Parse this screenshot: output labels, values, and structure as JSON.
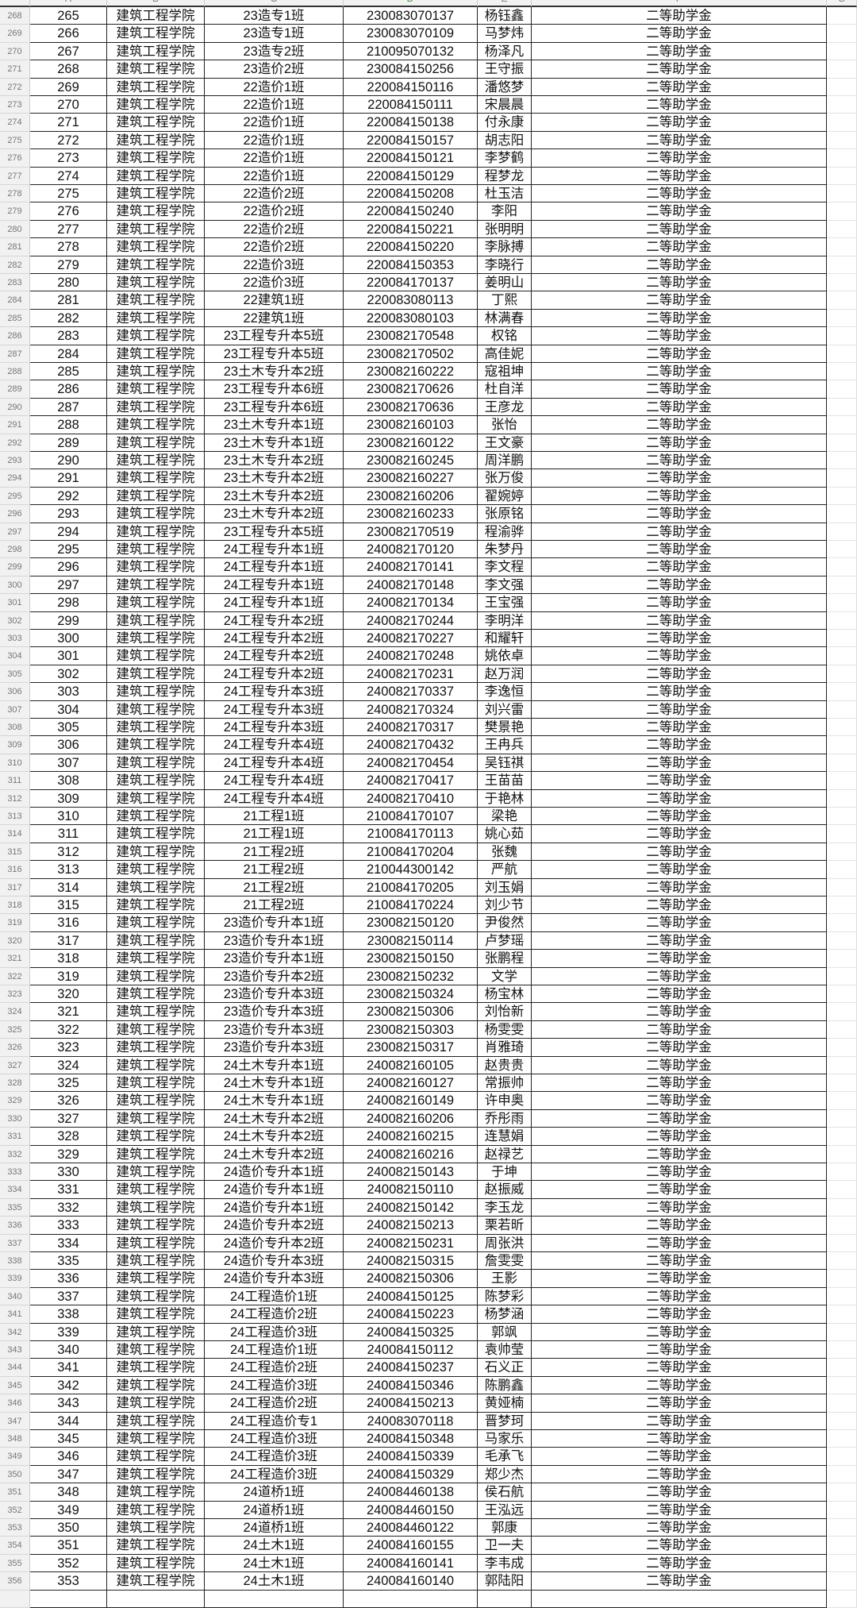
{
  "columns": [
    "A",
    "B",
    "C",
    "D",
    "E",
    "F",
    "G"
  ],
  "rows": [
    [
      "268",
      "265",
      "建筑工程学院",
      "23造专1班",
      "230083070137",
      "杨钰鑫",
      "二等助学金"
    ],
    [
      "269",
      "266",
      "建筑工程学院",
      "23造专1班",
      "230083070109",
      "马梦炜",
      "二等助学金"
    ],
    [
      "270",
      "267",
      "建筑工程学院",
      "23造专2班",
      "210095070132",
      "杨泽凡",
      "二等助学金"
    ],
    [
      "271",
      "268",
      "建筑工程学院",
      "23造价2班",
      "230084150256",
      "王守振",
      "二等助学金"
    ],
    [
      "272",
      "269",
      "建筑工程学院",
      "22造价1班",
      "220084150116",
      "潘悠梦",
      "二等助学金"
    ],
    [
      "273",
      "270",
      "建筑工程学院",
      "22造价1班",
      "220084150111",
      "宋晨晨",
      "二等助学金"
    ],
    [
      "274",
      "271",
      "建筑工程学院",
      "22造价1班",
      "220084150138",
      "付永康",
      "二等助学金"
    ],
    [
      "275",
      "272",
      "建筑工程学院",
      "22造价1班",
      "220084150157",
      "胡志阳",
      "二等助学金"
    ],
    [
      "276",
      "273",
      "建筑工程学院",
      "22造价1班",
      "220084150121",
      "李梦鹤",
      "二等助学金"
    ],
    [
      "277",
      "274",
      "建筑工程学院",
      "22造价1班",
      "220084150129",
      "程梦龙",
      "二等助学金"
    ],
    [
      "278",
      "275",
      "建筑工程学院",
      "22造价2班",
      "220084150208",
      "杜玉洁",
      "二等助学金"
    ],
    [
      "279",
      "276",
      "建筑工程学院",
      "22造价2班",
      "220084150240",
      "李阳",
      "二等助学金"
    ],
    [
      "280",
      "277",
      "建筑工程学院",
      "22造价2班",
      "220084150221",
      "张明明",
      "二等助学金"
    ],
    [
      "281",
      "278",
      "建筑工程学院",
      "22造价2班",
      "220084150220",
      "李脉搏",
      "二等助学金"
    ],
    [
      "282",
      "279",
      "建筑工程学院",
      "22造价3班",
      "220084150353",
      "李晓行",
      "二等助学金"
    ],
    [
      "283",
      "280",
      "建筑工程学院",
      "22造价3班",
      "220084170137",
      "姜明山",
      "二等助学金"
    ],
    [
      "284",
      "281",
      "建筑工程学院",
      "22建筑1班",
      "220083080113",
      "丁熙",
      "二等助学金"
    ],
    [
      "285",
      "282",
      "建筑工程学院",
      "22建筑1班",
      "220083080103",
      "林满春",
      "二等助学金"
    ],
    [
      "286",
      "283",
      "建筑工程学院",
      "23工程专升本5班",
      "230082170548",
      "权铭",
      "二等助学金"
    ],
    [
      "287",
      "284",
      "建筑工程学院",
      "23工程专升本5班",
      "230082170502",
      "高佳妮",
      "二等助学金"
    ],
    [
      "288",
      "285",
      "建筑工程学院",
      "23土木专升本2班",
      "230082160222",
      "寇祖坤",
      "二等助学金"
    ],
    [
      "289",
      "286",
      "建筑工程学院",
      "23工程专升本6班",
      "230082170626",
      "杜自洋",
      "二等助学金"
    ],
    [
      "290",
      "287",
      "建筑工程学院",
      "23工程专升本6班",
      "230082170636",
      "王彦龙",
      "二等助学金"
    ],
    [
      "291",
      "288",
      "建筑工程学院",
      "23土木专升本1班",
      "230082160103",
      "张怡",
      "二等助学金"
    ],
    [
      "292",
      "289",
      "建筑工程学院",
      "23土木专升本1班",
      "230082160122",
      "王文豪",
      "二等助学金"
    ],
    [
      "293",
      "290",
      "建筑工程学院",
      "23土木专升本2班",
      "230082160245",
      "周洋鹏",
      "二等助学金"
    ],
    [
      "294",
      "291",
      "建筑工程学院",
      "23土木专升本2班",
      "230082160227",
      "张万俊",
      "二等助学金"
    ],
    [
      "295",
      "292",
      "建筑工程学院",
      "23土木专升本2班",
      "230082160206",
      "翟婉婷",
      "二等助学金"
    ],
    [
      "296",
      "293",
      "建筑工程学院",
      "23土木专升本2班",
      "230082160233",
      "张原铭",
      "二等助学金"
    ],
    [
      "297",
      "294",
      "建筑工程学院",
      "23工程专升本5班",
      "230082170519",
      "程渝骅",
      "二等助学金"
    ],
    [
      "298",
      "295",
      "建筑工程学院",
      "24工程专升本1班",
      "240082170120",
      "朱梦丹",
      "二等助学金"
    ],
    [
      "299",
      "296",
      "建筑工程学院",
      "24工程专升本1班",
      "240082170141",
      "李文程",
      "二等助学金"
    ],
    [
      "300",
      "297",
      "建筑工程学院",
      "24工程专升本1班",
      "240082170148",
      "李文强",
      "二等助学金"
    ],
    [
      "301",
      "298",
      "建筑工程学院",
      "24工程专升本1班",
      "240082170134",
      "王宝强",
      "二等助学金"
    ],
    [
      "302",
      "299",
      "建筑工程学院",
      "24工程专升本2班",
      "240082170244",
      "李明洋",
      "二等助学金"
    ],
    [
      "303",
      "300",
      "建筑工程学院",
      "24工程专升本2班",
      "240082170227",
      "和耀轩",
      "二等助学金"
    ],
    [
      "304",
      "301",
      "建筑工程学院",
      "24工程专升本2班",
      "240082170248",
      "姚依卓",
      "二等助学金"
    ],
    [
      "305",
      "302",
      "建筑工程学院",
      "24工程专升本2班",
      "240082170231",
      "赵万润",
      "二等助学金"
    ],
    [
      "306",
      "303",
      "建筑工程学院",
      "24工程专升本3班",
      "240082170337",
      "李逸恒",
      "二等助学金"
    ],
    [
      "307",
      "304",
      "建筑工程学院",
      "24工程专升本3班",
      "240082170324",
      "刘兴雷",
      "二等助学金"
    ],
    [
      "308",
      "305",
      "建筑工程学院",
      "24工程专升本3班",
      "240082170317",
      "樊景艳",
      "二等助学金"
    ],
    [
      "309",
      "306",
      "建筑工程学院",
      "24工程专升本4班",
      "240082170432",
      "王冉兵",
      "二等助学金"
    ],
    [
      "310",
      "307",
      "建筑工程学院",
      "24工程专升本4班",
      "240082170454",
      "吴钰祺",
      "二等助学金"
    ],
    [
      "311",
      "308",
      "建筑工程学院",
      "24工程专升本4班",
      "240082170417",
      "王苗苗",
      "二等助学金"
    ],
    [
      "312",
      "309",
      "建筑工程学院",
      "24工程专升本4班",
      "240082170410",
      "于艳林",
      "二等助学金"
    ],
    [
      "313",
      "310",
      "建筑工程学院",
      "21工程1班",
      "210084170107",
      "梁艳",
      "二等助学金"
    ],
    [
      "314",
      "311",
      "建筑工程学院",
      "21工程1班",
      "210084170113",
      "姚心茹",
      "二等助学金"
    ],
    [
      "315",
      "312",
      "建筑工程学院",
      "21工程2班",
      "210084170204",
      "张魏",
      "二等助学金"
    ],
    [
      "316",
      "313",
      "建筑工程学院",
      "21工程2班",
      "210044300142",
      "严航",
      "二等助学金"
    ],
    [
      "317",
      "314",
      "建筑工程学院",
      "21工程2班",
      "210084170205",
      "刘玉娟",
      "二等助学金"
    ],
    [
      "318",
      "315",
      "建筑工程学院",
      "21工程2班",
      "210084170224",
      "刘少节",
      "二等助学金"
    ],
    [
      "319",
      "316",
      "建筑工程学院",
      "23造价专升本1班",
      "230082150120",
      "尹俊然",
      "二等助学金"
    ],
    [
      "320",
      "317",
      "建筑工程学院",
      "23造价专升本1班",
      "230082150114",
      "卢梦瑶",
      "二等助学金"
    ],
    [
      "321",
      "318",
      "建筑工程学院",
      "23造价专升本1班",
      "230082150150",
      "张鹏程",
      "二等助学金"
    ],
    [
      "322",
      "319",
      "建筑工程学院",
      "23造价专升本2班",
      "230082150232",
      "文学",
      "二等助学金"
    ],
    [
      "323",
      "320",
      "建筑工程学院",
      "23造价专升本3班",
      "230082150324",
      "杨宝林",
      "二等助学金"
    ],
    [
      "324",
      "321",
      "建筑工程学院",
      "23造价专升本3班",
      "230082150306",
      "刘怡新",
      "二等助学金"
    ],
    [
      "325",
      "322",
      "建筑工程学院",
      "23造价专升本3班",
      "230082150303",
      "杨雯雯",
      "二等助学金"
    ],
    [
      "326",
      "323",
      "建筑工程学院",
      "23造价专升本3班",
      "230082150317",
      "肖雅琦",
      "二等助学金"
    ],
    [
      "327",
      "324",
      "建筑工程学院",
      "24土木专升本1班",
      "240082160105",
      "赵贵贵",
      "二等助学金"
    ],
    [
      "328",
      "325",
      "建筑工程学院",
      "24土木专升本1班",
      "240082160127",
      "常振帅",
      "二等助学金"
    ],
    [
      "329",
      "326",
      "建筑工程学院",
      "24土木专升本1班",
      "240082160149",
      "许申奥",
      "二等助学金"
    ],
    [
      "330",
      "327",
      "建筑工程学院",
      "24土木专升本2班",
      "240082160206",
      "乔彤雨",
      "二等助学金"
    ],
    [
      "331",
      "328",
      "建筑工程学院",
      "24土木专升本2班",
      "240082160215",
      "连慧娟",
      "二等助学金"
    ],
    [
      "332",
      "329",
      "建筑工程学院",
      "24土木专升本2班",
      "240082160216",
      "赵禄艺",
      "二等助学金"
    ],
    [
      "333",
      "330",
      "建筑工程学院",
      "24造价专升本1班",
      "240082150143",
      "于坤",
      "二等助学金"
    ],
    [
      "334",
      "331",
      "建筑工程学院",
      "24造价专升本1班",
      "240082150110",
      "赵振威",
      "二等助学金"
    ],
    [
      "335",
      "332",
      "建筑工程学院",
      "24造价专升本1班",
      "240082150142",
      "李玉龙",
      "二等助学金"
    ],
    [
      "336",
      "333",
      "建筑工程学院",
      "24造价专升本2班",
      "240082150213",
      "栗若昕",
      "二等助学金"
    ],
    [
      "337",
      "334",
      "建筑工程学院",
      "24造价专升本2班",
      "240082150231",
      "周张洪",
      "二等助学金"
    ],
    [
      "338",
      "335",
      "建筑工程学院",
      "24造价专升本3班",
      "240082150315",
      "詹雯雯",
      "二等助学金"
    ],
    [
      "339",
      "336",
      "建筑工程学院",
      "24造价专升本3班",
      "240082150306",
      "王影",
      "二等助学金"
    ],
    [
      "340",
      "337",
      "建筑工程学院",
      "24工程造价1班",
      "240084150125",
      "陈梦彩",
      "二等助学金"
    ],
    [
      "341",
      "338",
      "建筑工程学院",
      "24工程造价2班",
      "240084150223",
      "杨梦涵",
      "二等助学金"
    ],
    [
      "342",
      "339",
      "建筑工程学院",
      "24工程造价3班",
      "240084150325",
      "郭飒",
      "二等助学金"
    ],
    [
      "343",
      "340",
      "建筑工程学院",
      "24工程造价1班",
      "240084150112",
      "袁帅莹",
      "二等助学金"
    ],
    [
      "344",
      "341",
      "建筑工程学院",
      "24工程造价2班",
      "240084150237",
      "石义正",
      "二等助学金"
    ],
    [
      "345",
      "342",
      "建筑工程学院",
      "24工程造价3班",
      "240084150346",
      "陈鹏鑫",
      "二等助学金"
    ],
    [
      "346",
      "343",
      "建筑工程学院",
      "24工程造价2班",
      "240084150213",
      "黄娅楠",
      "二等助学金"
    ],
    [
      "347",
      "344",
      "建筑工程学院",
      "24工程造价专1",
      "240083070118",
      "晋梦珂",
      "二等助学金"
    ],
    [
      "348",
      "345",
      "建筑工程学院",
      "24工程造价3班",
      "240084150348",
      "马家乐",
      "二等助学金"
    ],
    [
      "349",
      "346",
      "建筑工程学院",
      "24工程造价3班",
      "240084150339",
      "毛承飞",
      "二等助学金"
    ],
    [
      "350",
      "347",
      "建筑工程学院",
      "24工程造价3班",
      "240084150329",
      "郑少杰",
      "二等助学金"
    ],
    [
      "351",
      "348",
      "建筑工程学院",
      "24道桥1班",
      "240084460138",
      "侯石航",
      "二等助学金"
    ],
    [
      "352",
      "349",
      "建筑工程学院",
      "24道桥1班",
      "240084460150",
      "王泓远",
      "二等助学金"
    ],
    [
      "353",
      "350",
      "建筑工程学院",
      "24道桥1班",
      "240084460122",
      "郭康",
      "二等助学金"
    ],
    [
      "354",
      "351",
      "建筑工程学院",
      "24土木1班",
      "240084160155",
      "卫一夫",
      "二等助学金"
    ],
    [
      "355",
      "352",
      "建筑工程学院",
      "24土木1班",
      "240084160141",
      "李韦成",
      "二等助学金"
    ],
    [
      "356",
      "353",
      "建筑工程学院",
      "24土木1班",
      "240084160140",
      "郭陆阳",
      "二等助学金"
    ]
  ]
}
